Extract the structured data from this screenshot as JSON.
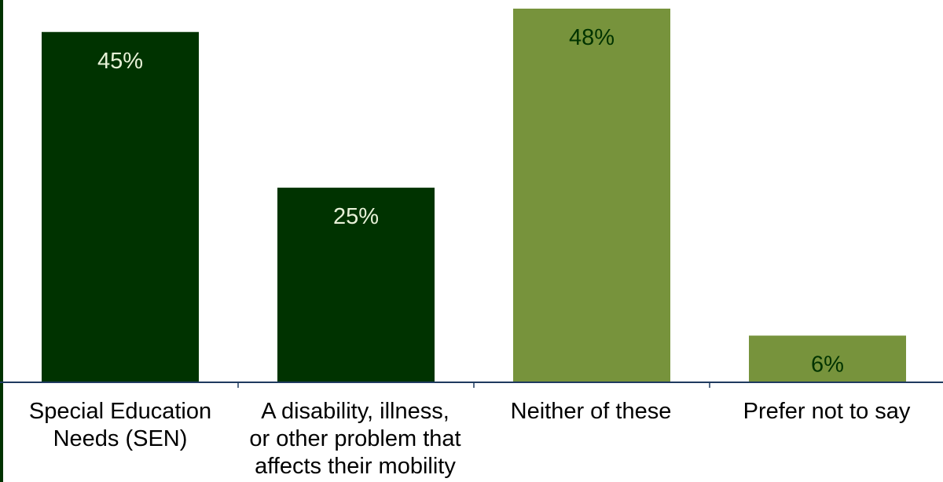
{
  "chart_data": {
    "type": "bar",
    "categories": [
      "Special Education Needs (SEN)",
      "A disability, illness, or other problem that affects their mobility",
      "Neither of these",
      "Prefer not to say"
    ],
    "values": [
      45,
      25,
      48,
      6
    ],
    "data_labels": [
      "45%",
      "25%",
      "48%",
      "6%"
    ],
    "bar_colors": [
      "#003300",
      "#003300",
      "#77933c",
      "#77933c"
    ],
    "label_colors": [
      "#e8f2d8",
      "#e8f2d8",
      "#003300",
      "#003300"
    ],
    "ylim": [
      0,
      48
    ],
    "title": "",
    "xlabel": "",
    "ylabel": "",
    "grid": false,
    "legend": "none"
  },
  "colors": {
    "axis": "#1f3a5f",
    "left_stripe": "#003300"
  }
}
